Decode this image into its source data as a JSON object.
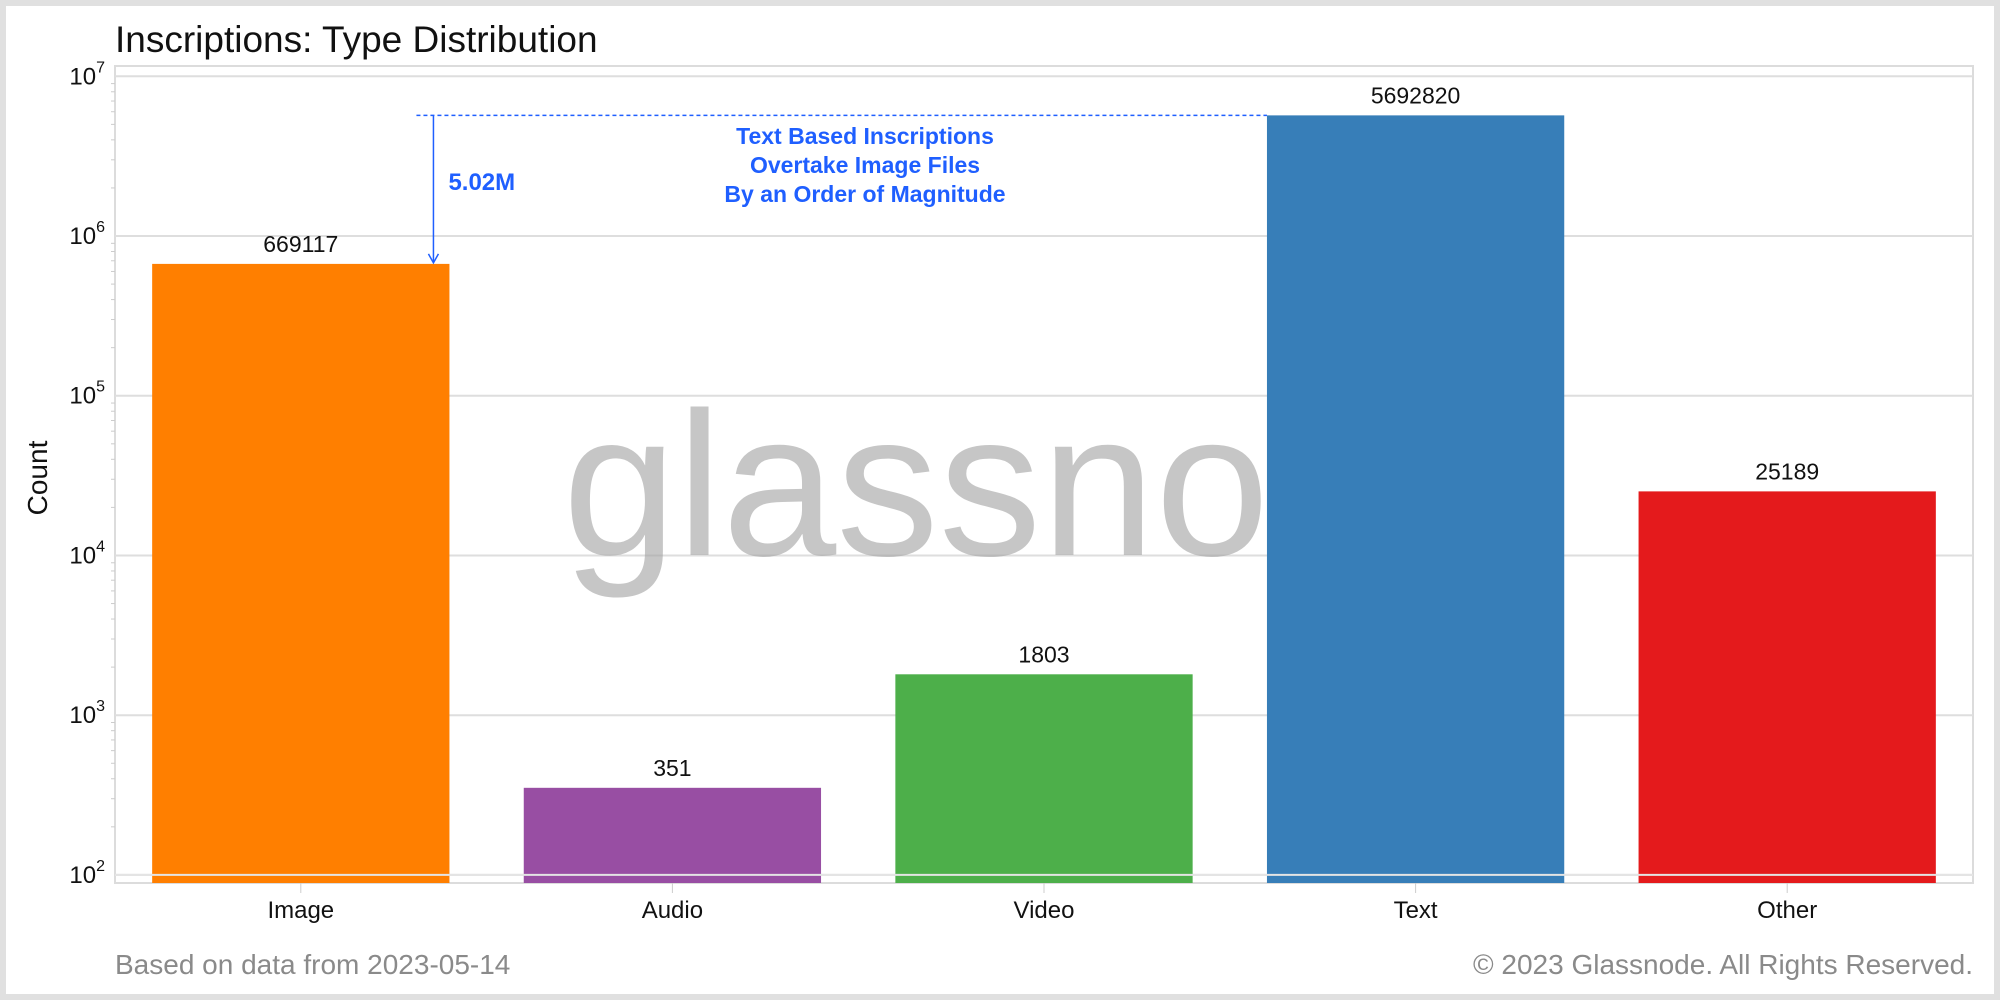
{
  "chart_data": {
    "type": "bar",
    "title": "Inscriptions: Type Distribution",
    "xlabel": "",
    "ylabel": "Count",
    "yscale": "log",
    "ylim": [
      89,
      11600000
    ],
    "yticks": [
      100,
      1000,
      10000,
      100000,
      1000000,
      10000000
    ],
    "ytick_labels": [
      {
        "base": "10",
        "exp": "2"
      },
      {
        "base": "10",
        "exp": "3"
      },
      {
        "base": "10",
        "exp": "4"
      },
      {
        "base": "10",
        "exp": "5"
      },
      {
        "base": "10",
        "exp": "6"
      },
      {
        "base": "10",
        "exp": "7"
      }
    ],
    "grid": true,
    "categories": [
      "Image",
      "Audio",
      "Video",
      "Text",
      "Other"
    ],
    "values": [
      669117,
      351,
      1803,
      5692820,
      25189
    ],
    "data_labels": [
      "669117",
      "351",
      "1803",
      "5692820",
      "25189"
    ],
    "colors": [
      "#ff7f00",
      "#984ea3",
      "#4daf4a",
      "#377eb8",
      "#e41a1c"
    ],
    "annotation": {
      "difference_label": "5.02M",
      "text_lines": [
        "Text Based Inscriptions",
        "Overtake Image Files",
        "By an Order of Magnitude"
      ],
      "color": "#1f5fff"
    }
  },
  "watermark": "glassnode",
  "footer": {
    "source": "Based on data from 2023-05-14",
    "copyright": "© 2023 Glassnode. All Rights Reserved."
  }
}
